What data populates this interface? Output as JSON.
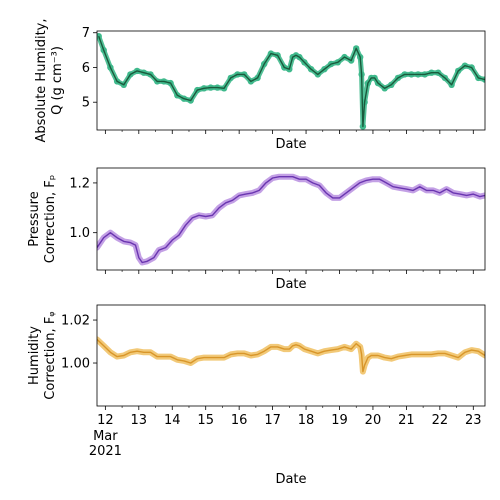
{
  "chart_data": [
    {
      "type": "line",
      "ylabel_lines": [
        "Absolute Humidity,",
        "Q (g cm⁻³)"
      ],
      "xlabel": "Date",
      "ylim": [
        4.2,
        7.05
      ],
      "yticks": [
        5,
        6,
        7
      ],
      "xlim": [
        11.75,
        23.35
      ],
      "colors": {
        "points": "#3fb98c",
        "line": "#1a5a3c"
      },
      "series": [
        {
          "kind": "points+line",
          "x": [
            11.8,
            11.95,
            12.15,
            12.35,
            12.55,
            12.75,
            12.95,
            13.15,
            13.35,
            13.55,
            13.75,
            13.95,
            14.15,
            14.35,
            14.55,
            14.75,
            14.95,
            15.15,
            15.35,
            15.55,
            15.75,
            15.95,
            16.15,
            16.35,
            16.55,
            16.75,
            16.95,
            17.15,
            17.35,
            17.5,
            17.6,
            17.7,
            17.8,
            17.95,
            18.15,
            18.35,
            18.55,
            18.75,
            18.95,
            19.15,
            19.35,
            19.5,
            19.62,
            19.66,
            19.7,
            19.75,
            19.85,
            19.95,
            20.05,
            20.15,
            20.35,
            20.55,
            20.75,
            20.95,
            21.15,
            21.35,
            21.55,
            21.75,
            21.95,
            22.15,
            22.35,
            22.55,
            22.75,
            22.95,
            23.15,
            23.35
          ],
          "y": [
            6.9,
            6.5,
            6.0,
            5.6,
            5.5,
            5.8,
            5.9,
            5.85,
            5.8,
            5.6,
            5.6,
            5.55,
            5.2,
            5.1,
            5.05,
            5.35,
            5.4,
            5.42,
            5.42,
            5.4,
            5.7,
            5.8,
            5.8,
            5.6,
            5.7,
            6.1,
            6.4,
            6.35,
            6.0,
            5.95,
            6.3,
            6.35,
            6.3,
            6.15,
            5.95,
            5.8,
            5.95,
            6.1,
            6.15,
            6.3,
            6.2,
            6.55,
            6.3,
            5.8,
            4.3,
            5.0,
            5.55,
            5.7,
            5.7,
            5.55,
            5.4,
            5.5,
            5.7,
            5.8,
            5.8,
            5.8,
            5.8,
            5.85,
            5.85,
            5.7,
            5.5,
            5.9,
            6.05,
            6.0,
            5.7,
            5.65
          ]
        }
      ]
    },
    {
      "type": "line",
      "ylabel_lines": [
        "Pressure",
        "Correction, Fₚ"
      ],
      "xlabel": "Date",
      "ylim": [
        0.85,
        1.26
      ],
      "yticks": [
        1.0,
        1.2
      ],
      "ytick_labels": [
        "1.0",
        "1.2"
      ],
      "xlim": [
        11.75,
        23.35
      ],
      "colors": {
        "band": "#b98fe0",
        "line": "#6a35b0"
      },
      "series": [
        {
          "kind": "band+line",
          "x": [
            11.75,
            11.95,
            12.15,
            12.35,
            12.55,
            12.75,
            12.9,
            13.0,
            13.1,
            13.25,
            13.45,
            13.6,
            13.8,
            14.0,
            14.2,
            14.4,
            14.6,
            14.8,
            15.0,
            15.2,
            15.4,
            15.6,
            15.8,
            16.0,
            16.2,
            16.4,
            16.6,
            16.8,
            17.0,
            17.2,
            17.4,
            17.6,
            17.8,
            18.0,
            18.2,
            18.4,
            18.6,
            18.8,
            19.0,
            19.2,
            19.4,
            19.6,
            19.8,
            20.0,
            20.2,
            20.4,
            20.6,
            20.8,
            21.0,
            21.2,
            21.4,
            21.6,
            21.8,
            22.0,
            22.2,
            22.4,
            22.6,
            22.8,
            23.0,
            23.2,
            23.35
          ],
          "y": [
            0.94,
            0.98,
            1.0,
            0.98,
            0.965,
            0.96,
            0.95,
            0.9,
            0.88,
            0.885,
            0.9,
            0.93,
            0.94,
            0.97,
            0.99,
            1.03,
            1.06,
            1.07,
            1.065,
            1.07,
            1.1,
            1.12,
            1.13,
            1.15,
            1.155,
            1.16,
            1.17,
            1.2,
            1.22,
            1.225,
            1.225,
            1.225,
            1.215,
            1.215,
            1.2,
            1.19,
            1.16,
            1.14,
            1.14,
            1.16,
            1.18,
            1.2,
            1.21,
            1.215,
            1.215,
            1.2,
            1.185,
            1.18,
            1.175,
            1.17,
            1.185,
            1.17,
            1.17,
            1.16,
            1.175,
            1.16,
            1.155,
            1.15,
            1.155,
            1.145,
            1.15
          ]
        }
      ]
    },
    {
      "type": "line",
      "ylabel_lines": [
        "Humidity",
        "Correction, Fᵩ"
      ],
      "xlabel": "Date",
      "ylim": [
        0.98,
        1.027
      ],
      "yticks": [
        1.0,
        1.02
      ],
      "ytick_labels": [
        "1.00",
        "1.02"
      ],
      "xlim": [
        11.75,
        23.35
      ],
      "x_ticks": [
        12,
        13,
        14,
        15,
        16,
        17,
        18,
        19,
        20,
        21,
        22,
        23
      ],
      "x_ticks_extra": {
        "12": [
          "Mar",
          "2021"
        ]
      },
      "colors": {
        "band": "#f0c060",
        "line": "#d8962a"
      },
      "series": [
        {
          "kind": "band+line",
          "x": [
            11.75,
            11.95,
            12.15,
            12.35,
            12.55,
            12.75,
            12.95,
            13.15,
            13.35,
            13.55,
            13.75,
            13.95,
            14.15,
            14.35,
            14.55,
            14.75,
            14.95,
            15.15,
            15.35,
            15.55,
            15.75,
            15.95,
            16.15,
            16.35,
            16.55,
            16.75,
            16.95,
            17.15,
            17.35,
            17.5,
            17.6,
            17.7,
            17.8,
            17.95,
            18.15,
            18.35,
            18.55,
            18.75,
            18.95,
            19.15,
            19.35,
            19.5,
            19.62,
            19.66,
            19.7,
            19.75,
            19.85,
            19.95,
            20.15,
            20.35,
            20.55,
            20.75,
            20.95,
            21.15,
            21.35,
            21.55,
            21.75,
            21.95,
            22.15,
            22.35,
            22.55,
            22.75,
            22.95,
            23.15,
            23.35
          ],
          "y": [
            1.011,
            1.008,
            1.005,
            1.003,
            1.0035,
            1.005,
            1.0055,
            1.005,
            1.005,
            1.003,
            1.003,
            1.003,
            1.0015,
            1.001,
            1.0,
            1.002,
            1.0025,
            1.0025,
            1.0025,
            1.0025,
            1.004,
            1.0045,
            1.0045,
            1.0035,
            1.004,
            1.0055,
            1.0075,
            1.0075,
            1.0065,
            1.0065,
            1.008,
            1.0085,
            1.008,
            1.0065,
            1.0055,
            1.0045,
            1.0055,
            1.006,
            1.0065,
            1.0075,
            1.0065,
            1.009,
            1.0075,
            1.004,
            0.996,
            0.999,
            1.0025,
            1.0035,
            1.0035,
            1.0025,
            1.002,
            1.003,
            1.0035,
            1.004,
            1.004,
            1.004,
            1.004,
            1.0045,
            1.0045,
            1.0035,
            1.0025,
            1.005,
            1.006,
            1.0055,
            1.0035
          ]
        }
      ]
    }
  ],
  "bottom_xlabel": "Date"
}
